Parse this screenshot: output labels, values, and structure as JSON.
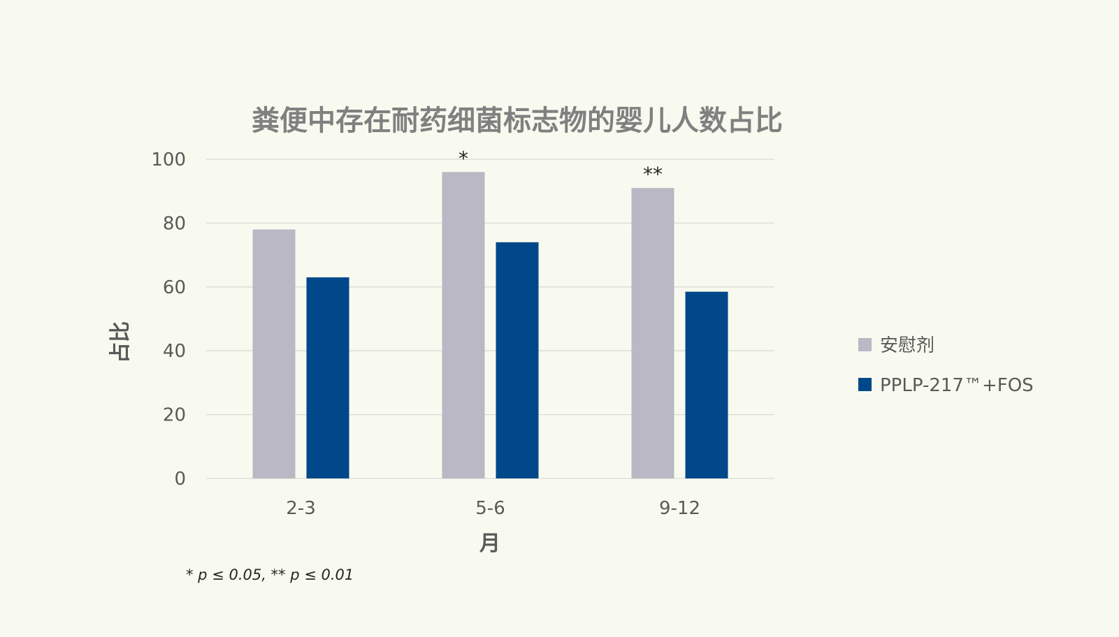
{
  "colors": {
    "background": "#f9faef",
    "grid": "#d9d9d9",
    "text": "#595959",
    "annotation": "#262626"
  },
  "chart_data": {
    "type": "bar",
    "title": "粪便中存在耐药细菌标志物的婴儿人数占比",
    "xlabel": "月",
    "ylabel": "占比",
    "ylim": [
      0,
      100
    ],
    "yticks": [
      0,
      20,
      40,
      60,
      80,
      100
    ],
    "grid": true,
    "legend_position": "right",
    "categories": [
      "2-3",
      "5-6",
      "9-12"
    ],
    "series": [
      {
        "name": "安慰剂",
        "color": "#b9b8c4",
        "values": [
          78,
          96,
          91
        ]
      },
      {
        "name": "PPLP-217™+FOS",
        "color": "#00488a",
        "values": [
          63,
          74,
          58.5
        ]
      }
    ],
    "annotations": [
      {
        "category": "5-6",
        "text": "*"
      },
      {
        "category": "9-12",
        "text": "**"
      }
    ],
    "footnote": "* p ≤ 0.05, ** p ≤ 0.01"
  }
}
